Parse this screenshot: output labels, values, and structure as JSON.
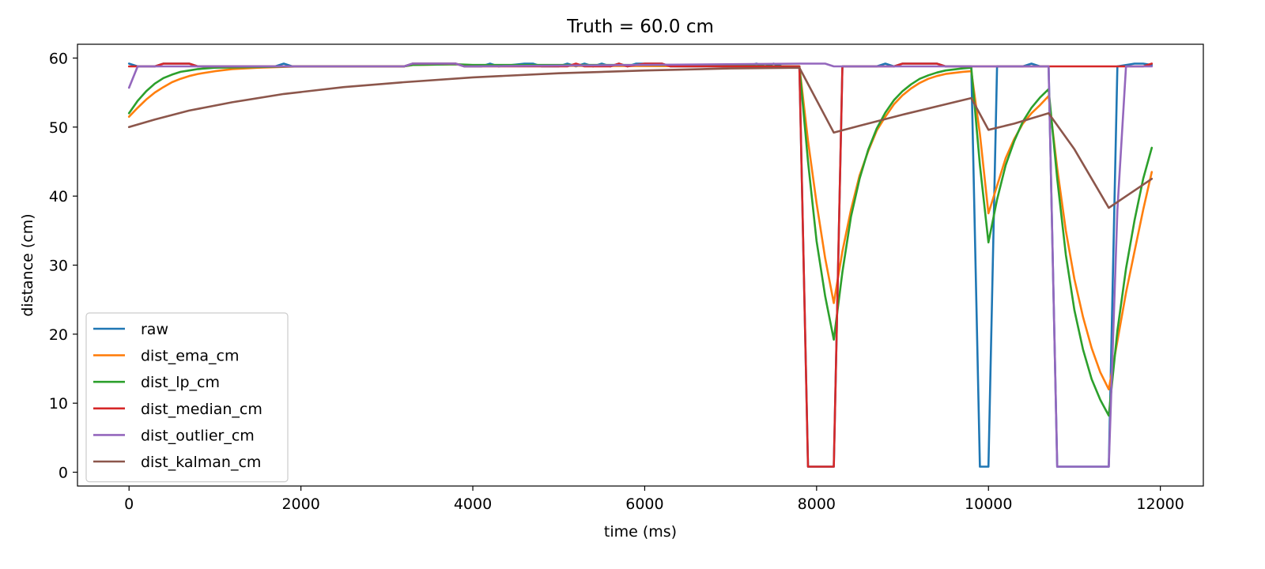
{
  "chart_data": {
    "type": "line",
    "title": "Truth = 60.0 cm",
    "xlabel": "time (ms)",
    "ylabel": "distance (cm)",
    "xlim": [
      -600,
      12500
    ],
    "ylim": [
      -2,
      62
    ],
    "xticks": [
      0,
      2000,
      4000,
      6000,
      8000,
      10000,
      12000
    ],
    "yticks": [
      0,
      10,
      20,
      30,
      40,
      50,
      60
    ],
    "grid": false,
    "legend_position": "lower-left",
    "series": [
      {
        "name": "raw",
        "color": "#1f77b4",
        "points": [
          [
            0,
            59.2
          ],
          [
            100,
            58.8
          ],
          [
            200,
            58.8
          ],
          [
            300,
            58.8
          ],
          [
            400,
            59.2
          ],
          [
            500,
            59.2
          ],
          [
            600,
            59.2
          ],
          [
            700,
            59.2
          ],
          [
            800,
            58.8
          ],
          [
            900,
            58.8
          ],
          [
            1000,
            58.8
          ],
          [
            1500,
            58.8
          ],
          [
            1700,
            58.8
          ],
          [
            1800,
            59.2
          ],
          [
            1900,
            58.8
          ],
          [
            2500,
            58.8
          ],
          [
            3200,
            58.8
          ],
          [
            3300,
            59.2
          ],
          [
            3700,
            59.2
          ],
          [
            3800,
            59.2
          ],
          [
            3900,
            58.8
          ],
          [
            4000,
            58.8
          ],
          [
            4100,
            58.8
          ],
          [
            4200,
            59.2
          ],
          [
            4300,
            58.8
          ],
          [
            4600,
            59.2
          ],
          [
            4700,
            59.2
          ],
          [
            4800,
            58.8
          ],
          [
            5000,
            58.8
          ],
          [
            5100,
            59.2
          ],
          [
            5200,
            58.8
          ],
          [
            5300,
            59.2
          ],
          [
            5400,
            58.8
          ],
          [
            5500,
            59.2
          ],
          [
            5600,
            58.8
          ],
          [
            5700,
            59.2
          ],
          [
            5800,
            58.8
          ],
          [
            5900,
            59.2
          ],
          [
            6000,
            59.2
          ],
          [
            6200,
            59.2
          ],
          [
            6300,
            58.8
          ],
          [
            7200,
            58.8
          ],
          [
            7300,
            59.2
          ],
          [
            7400,
            58.8
          ],
          [
            7500,
            59.2
          ],
          [
            7600,
            58.8
          ],
          [
            7800,
            58.8
          ],
          [
            7900,
            0.8
          ],
          [
            8200,
            0.8
          ],
          [
            8300,
            58.8
          ],
          [
            8700,
            58.8
          ],
          [
            8800,
            59.2
          ],
          [
            8900,
            58.8
          ],
          [
            9000,
            59.2
          ],
          [
            9400,
            59.2
          ],
          [
            9500,
            58.8
          ],
          [
            9800,
            58.8
          ],
          [
            9900,
            0.8
          ],
          [
            10000,
            0.8
          ],
          [
            10100,
            58.8
          ],
          [
            10400,
            58.8
          ],
          [
            10500,
            59.2
          ],
          [
            10600,
            58.8
          ],
          [
            10700,
            58.8
          ],
          [
            10800,
            0.8
          ],
          [
            11400,
            0.8
          ],
          [
            11500,
            58.8
          ],
          [
            11700,
            59.2
          ],
          [
            11800,
            59.2
          ],
          [
            11900,
            59.0
          ]
        ]
      },
      {
        "name": "dist_ema_cm",
        "color": "#ff7f0e",
        "points": [
          [
            0,
            51.5
          ],
          [
            100,
            52.8
          ],
          [
            200,
            54.0
          ],
          [
            300,
            55.0
          ],
          [
            400,
            55.8
          ],
          [
            500,
            56.5
          ],
          [
            600,
            57.0
          ],
          [
            700,
            57.4
          ],
          [
            800,
            57.7
          ],
          [
            1000,
            58.1
          ],
          [
            1200,
            58.4
          ],
          [
            1500,
            58.6
          ],
          [
            2000,
            58.8
          ],
          [
            3200,
            58.8
          ],
          [
            3300,
            59.0
          ],
          [
            3800,
            59.1
          ],
          [
            4000,
            58.9
          ],
          [
            7800,
            58.8
          ],
          [
            7900,
            48.0
          ],
          [
            8000,
            39.0
          ],
          [
            8100,
            31.0
          ],
          [
            8200,
            24.5
          ],
          [
            8300,
            32.0
          ],
          [
            8400,
            38.0
          ],
          [
            8500,
            43.0
          ],
          [
            8600,
            46.5
          ],
          [
            8700,
            49.5
          ],
          [
            8800,
            51.5
          ],
          [
            8900,
            53.3
          ],
          [
            9000,
            54.6
          ],
          [
            9100,
            55.6
          ],
          [
            9200,
            56.4
          ],
          [
            9300,
            57.0
          ],
          [
            9400,
            57.4
          ],
          [
            9500,
            57.7
          ],
          [
            9700,
            58.0
          ],
          [
            9800,
            58.1
          ],
          [
            9900,
            49.0
          ],
          [
            10000,
            37.5
          ],
          [
            10100,
            41.5
          ],
          [
            10200,
            45.5
          ],
          [
            10300,
            48.3
          ],
          [
            10400,
            50.5
          ],
          [
            10500,
            52.0
          ],
          [
            10600,
            53.2
          ],
          [
            10700,
            54.5
          ],
          [
            10800,
            44.0
          ],
          [
            10900,
            35.0
          ],
          [
            11000,
            28.0
          ],
          [
            11100,
            22.5
          ],
          [
            11200,
            18.0
          ],
          [
            11300,
            14.5
          ],
          [
            11400,
            12.0
          ],
          [
            11500,
            19.0
          ],
          [
            11600,
            26.0
          ],
          [
            11700,
            32.0
          ],
          [
            11800,
            38.0
          ],
          [
            11900,
            43.5
          ]
        ]
      },
      {
        "name": "dist_lp_cm",
        "color": "#2ca02c",
        "points": [
          [
            0,
            52.0
          ],
          [
            100,
            53.8
          ],
          [
            200,
            55.2
          ],
          [
            300,
            56.3
          ],
          [
            400,
            57.1
          ],
          [
            500,
            57.6
          ],
          [
            600,
            58.0
          ],
          [
            700,
            58.2
          ],
          [
            800,
            58.4
          ],
          [
            1000,
            58.6
          ],
          [
            1500,
            58.7
          ],
          [
            2000,
            58.8
          ],
          [
            3200,
            58.8
          ],
          [
            3300,
            59.0
          ],
          [
            3800,
            59.1
          ],
          [
            4000,
            59.0
          ],
          [
            6300,
            59.0
          ],
          [
            7800,
            58.8
          ],
          [
            7900,
            45.0
          ],
          [
            8000,
            33.5
          ],
          [
            8100,
            25.5
          ],
          [
            8200,
            19.2
          ],
          [
            8300,
            29.0
          ],
          [
            8400,
            37.0
          ],
          [
            8500,
            42.5
          ],
          [
            8600,
            46.7
          ],
          [
            8700,
            49.8
          ],
          [
            8800,
            52.1
          ],
          [
            8900,
            53.9
          ],
          [
            9000,
            55.2
          ],
          [
            9100,
            56.2
          ],
          [
            9200,
            57.0
          ],
          [
            9300,
            57.5
          ],
          [
            9400,
            57.9
          ],
          [
            9500,
            58.2
          ],
          [
            9700,
            58.5
          ],
          [
            9800,
            58.6
          ],
          [
            9900,
            44.5
          ],
          [
            10000,
            33.3
          ],
          [
            10100,
            39.5
          ],
          [
            10200,
            44.5
          ],
          [
            10300,
            48.0
          ],
          [
            10400,
            50.8
          ],
          [
            10500,
            52.8
          ],
          [
            10600,
            54.3
          ],
          [
            10700,
            55.5
          ],
          [
            10800,
            42.5
          ],
          [
            10900,
            31.5
          ],
          [
            11000,
            23.5
          ],
          [
            11100,
            17.8
          ],
          [
            11200,
            13.5
          ],
          [
            11300,
            10.5
          ],
          [
            11400,
            8.2
          ],
          [
            11500,
            20.5
          ],
          [
            11600,
            29.5
          ],
          [
            11700,
            36.5
          ],
          [
            11800,
            42.5
          ],
          [
            11900,
            47.0
          ]
        ]
      },
      {
        "name": "dist_median_cm",
        "color": "#d62728",
        "points": [
          [
            0,
            58.8
          ],
          [
            300,
            58.8
          ],
          [
            400,
            59.2
          ],
          [
            700,
            59.2
          ],
          [
            800,
            58.8
          ],
          [
            1500,
            58.8
          ],
          [
            3200,
            58.8
          ],
          [
            3300,
            59.2
          ],
          [
            3800,
            59.2
          ],
          [
            3900,
            58.8
          ],
          [
            5100,
            58.8
          ],
          [
            5200,
            59.2
          ],
          [
            5300,
            58.8
          ],
          [
            5600,
            58.8
          ],
          [
            5700,
            59.2
          ],
          [
            5800,
            58.8
          ],
          [
            6000,
            59.2
          ],
          [
            6200,
            59.2
          ],
          [
            6300,
            58.8
          ],
          [
            7800,
            58.8
          ],
          [
            7900,
            0.8
          ],
          [
            8200,
            0.8
          ],
          [
            8300,
            58.8
          ],
          [
            8900,
            58.8
          ],
          [
            9000,
            59.2
          ],
          [
            9400,
            59.2
          ],
          [
            9500,
            58.8
          ],
          [
            11400,
            58.8
          ],
          [
            11500,
            58.8
          ],
          [
            11800,
            58.8
          ],
          [
            11900,
            59.2
          ]
        ]
      },
      {
        "name": "dist_outlier_cm",
        "color": "#9467bd",
        "points": [
          [
            0,
            55.7
          ],
          [
            100,
            58.8
          ],
          [
            3200,
            58.8
          ],
          [
            3300,
            59.2
          ],
          [
            3800,
            59.2
          ],
          [
            3900,
            58.8
          ],
          [
            7800,
            59.2
          ],
          [
            8100,
            59.2
          ],
          [
            8200,
            58.8
          ],
          [
            10700,
            58.8
          ],
          [
            10800,
            0.8
          ],
          [
            11400,
            0.8
          ],
          [
            11500,
            38.0
          ],
          [
            11600,
            58.8
          ],
          [
            11900,
            58.8
          ]
        ]
      },
      {
        "name": "dist_kalman_cm",
        "color": "#8c564b",
        "points": [
          [
            0,
            50.0
          ],
          [
            300,
            51.1
          ],
          [
            700,
            52.4
          ],
          [
            1200,
            53.6
          ],
          [
            1800,
            54.8
          ],
          [
            2500,
            55.8
          ],
          [
            3200,
            56.5
          ],
          [
            4000,
            57.2
          ],
          [
            5000,
            57.8
          ],
          [
            6000,
            58.2
          ],
          [
            7000,
            58.5
          ],
          [
            7800,
            58.6
          ],
          [
            8200,
            49.2
          ],
          [
            8500,
            50.2
          ],
          [
            9000,
            51.8
          ],
          [
            9500,
            53.3
          ],
          [
            9800,
            54.2
          ],
          [
            10000,
            49.6
          ],
          [
            10300,
            50.5
          ],
          [
            10700,
            52.0
          ],
          [
            11000,
            46.8
          ],
          [
            11400,
            38.3
          ],
          [
            11900,
            42.5
          ]
        ]
      }
    ]
  }
}
